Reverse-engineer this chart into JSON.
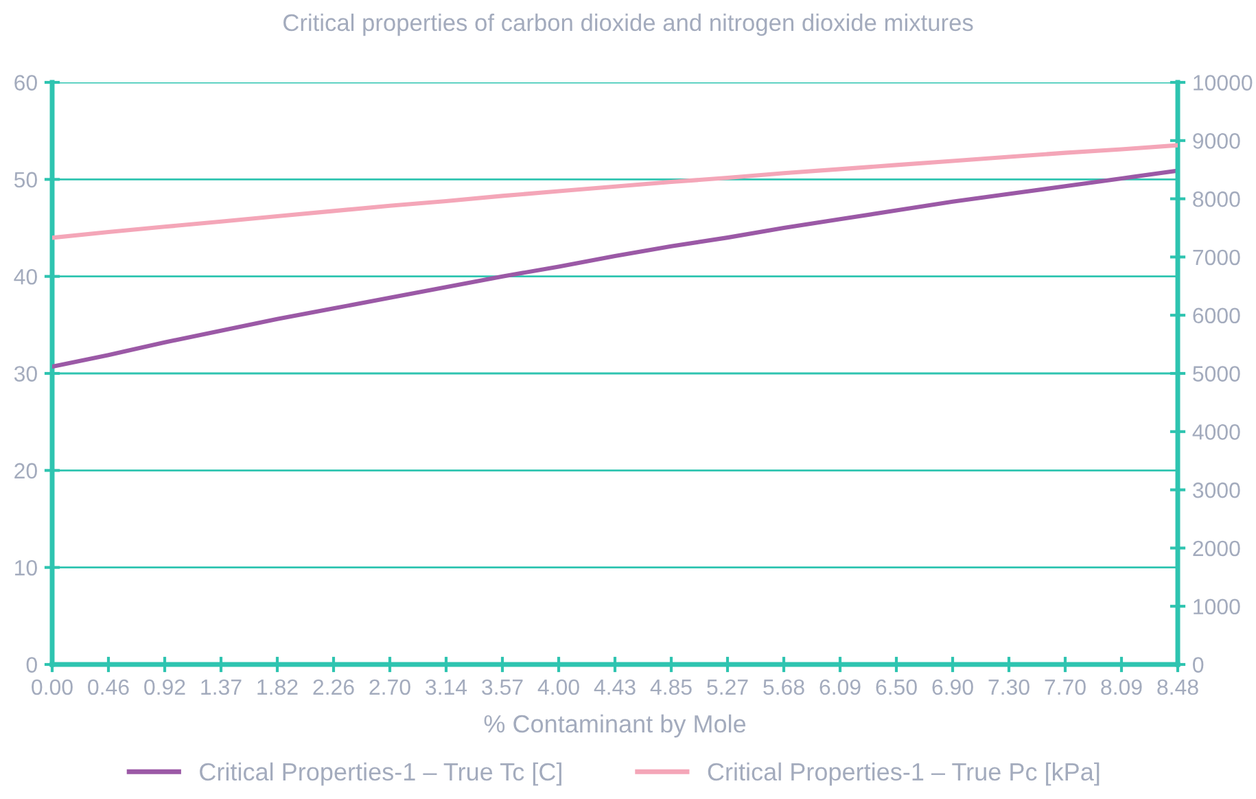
{
  "chart_data": {
    "type": "line",
    "title": "Critical properties of carbon dioxide and nitrogen dioxide mixtures",
    "xlabel": "% Contaminant by Mole",
    "categories": [
      "0.00",
      "0.46",
      "0.92",
      "1.37",
      "1.82",
      "2.26",
      "2.70",
      "3.14",
      "3.57",
      "4.00",
      "4.43",
      "4.85",
      "5.27",
      "5.68",
      "6.09",
      "6.50",
      "6.90",
      "7.30",
      "7.70",
      "8.09",
      "8.48"
    ],
    "series": [
      {
        "name": "Critical Properties-1 – True Tc [C]",
        "color": "#9b59a6",
        "values": [
          30.7,
          31.9,
          33.2,
          34.4,
          35.6,
          36.7,
          37.8,
          38.9,
          40.0,
          41.0,
          42.1,
          43.1,
          44.0,
          45.0,
          45.9,
          46.8,
          47.7,
          48.5,
          49.3,
          50.1,
          50.9
        ]
      },
      {
        "name": "Critical Properties-1 – True Pc [kPa]",
        "color": "#f4a6b8",
        "axis": "y2",
        "values": [
          7330,
          7430,
          7520,
          7610,
          7700,
          7790,
          7880,
          7960,
          8050,
          8130,
          8210,
          8290,
          8360,
          8440,
          8510,
          8580,
          8650,
          8720,
          8790,
          8850,
          8920
        ]
      }
    ],
    "ylim": [
      0,
      60
    ],
    "yticks": [
      0,
      10,
      20,
      30,
      40,
      50,
      60
    ],
    "y2lim": [
      0,
      10000
    ],
    "y2ticks": [
      0,
      1000,
      2000,
      3000,
      4000,
      5000,
      6000,
      7000,
      8000,
      9000,
      10000
    ],
    "grid": "y",
    "legend": "bottom",
    "marker": "none",
    "line_style": "solid"
  }
}
